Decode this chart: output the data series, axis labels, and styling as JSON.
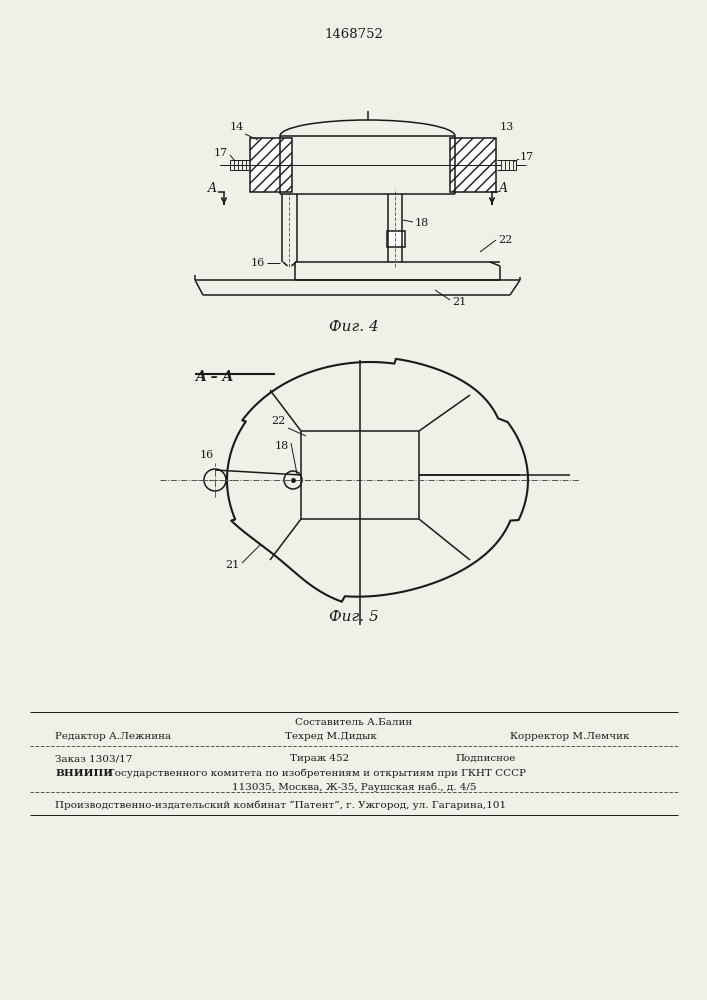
{
  "title": "1468752",
  "fig4_label": "Фиг. 4",
  "fig5_label": "Фиг. 5",
  "fig5_section_label": "A – A",
  "bg_color": "#f0efe8",
  "line_color": "#1a1a1a",
  "footer_sestavitel": "Составитель А.Балин",
  "footer_redaktor": "Редактор А.Лежнина",
  "footer_tehred": "Техред М.Дидык",
  "footer_korrektor": "Корректор М.Лемчик",
  "footer_zakaz": "Заказ 1303/17",
  "footer_tirazh": "Тираж 452",
  "footer_podpisnoe": "Подписное",
  "footer_vniiipi_bold": "ВНИИПИ",
  "footer_vniiipi_text": "Государственного комитета по изобретениям и открытиям при ГКНТ СССР",
  "footer_addr": "113035, Москва, Ж-35, Раушская наб., д. 4/5",
  "footer_patent": "Производственно-издательский комбинат “Патент”, г. Ужгород, ул. Гагарина,101"
}
